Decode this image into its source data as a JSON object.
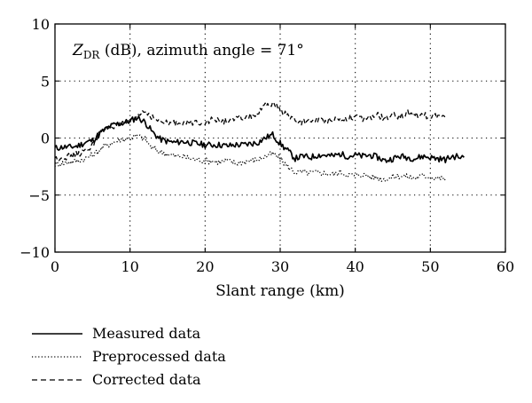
{
  "chart_data": {
    "type": "line",
    "annotation": {
      "symbol": "Z",
      "subscript": "DR",
      "text": " (dB), azimuth angle = 71°"
    },
    "xlabel": "Slant range (km)",
    "ylabel": "",
    "xlim": [
      0,
      60
    ],
    "ylim": [
      -10,
      10
    ],
    "x_ticks": [
      0,
      10,
      20,
      30,
      40,
      50,
      60
    ],
    "y_ticks": [
      -10,
      -5,
      0,
      5,
      10
    ],
    "grid": "dotted",
    "legend_position": "bottom-left",
    "series": [
      {
        "name": "Measured data",
        "style": "solid",
        "x": [
          0,
          1,
          2,
          3,
          4,
          5,
          6,
          7,
          8,
          9,
          10,
          11,
          12,
          13,
          14,
          15,
          16,
          17,
          18,
          19,
          20,
          21,
          22,
          23,
          24,
          25,
          26,
          27,
          28,
          29,
          30,
          31,
          32,
          33,
          34,
          35,
          36,
          37,
          38,
          39,
          40,
          41,
          42,
          43,
          44,
          45,
          46,
          47,
          48,
          49,
          50,
          51,
          52,
          53,
          54.5
        ],
        "y": [
          -0.9,
          -0.8,
          -0.8,
          -0.7,
          -0.4,
          -0.2,
          0.4,
          0.9,
          1.2,
          1.3,
          1.5,
          1.8,
          1.4,
          0.5,
          -0.1,
          -0.3,
          -0.4,
          -0.3,
          -0.4,
          -0.5,
          -0.6,
          -0.6,
          -0.6,
          -0.7,
          -0.6,
          -0.6,
          -0.5,
          -0.4,
          0.0,
          0.3,
          -0.5,
          -1.1,
          -1.8,
          -1.6,
          -1.7,
          -1.5,
          -1.5,
          -1.6,
          -1.4,
          -1.6,
          -1.5,
          -1.6,
          -1.5,
          -1.7,
          -2.0,
          -1.8,
          -1.6,
          -1.7,
          -1.8,
          -1.6,
          -1.7,
          -1.8,
          -1.9,
          -1.6,
          -1.7
        ]
      },
      {
        "name": "Preprocessed data",
        "style": "dotted",
        "x": [
          0,
          1,
          2,
          3,
          4,
          5,
          6,
          7,
          8,
          9,
          10,
          11,
          12,
          13,
          14,
          15,
          16,
          17,
          18,
          19,
          20,
          21,
          22,
          23,
          24,
          25,
          26,
          27,
          28,
          29,
          30,
          31,
          32,
          33,
          34,
          35,
          36,
          37,
          38,
          39,
          40,
          41,
          42,
          43,
          44,
          45,
          46,
          47,
          48,
          49,
          50,
          51,
          52
        ],
        "y": [
          -2.3,
          -2.2,
          -2.1,
          -2.0,
          -1.8,
          -1.5,
          -1.0,
          -0.6,
          -0.3,
          -0.1,
          0.0,
          0.2,
          -0.1,
          -0.9,
          -1.2,
          -1.4,
          -1.6,
          -1.6,
          -1.8,
          -1.9,
          -2.0,
          -2.0,
          -2.1,
          -2.0,
          -2.2,
          -2.1,
          -2.0,
          -1.9,
          -1.6,
          -1.4,
          -1.8,
          -2.5,
          -3.0,
          -3.0,
          -3.1,
          -3.0,
          -3.1,
          -3.2,
          -3.0,
          -3.2,
          -3.3,
          -3.2,
          -3.4,
          -3.5,
          -3.6,
          -3.4,
          -3.3,
          -3.4,
          -3.5,
          -3.3,
          -3.4,
          -3.5,
          -3.6
        ]
      },
      {
        "name": "Corrected data",
        "style": "dashed",
        "x": [
          0,
          1,
          2,
          3,
          4,
          5,
          6,
          7,
          8,
          9,
          10,
          11,
          12,
          13,
          14,
          15,
          16,
          17,
          18,
          19,
          20,
          21,
          22,
          23,
          24,
          25,
          26,
          27,
          28,
          29,
          30,
          31,
          32,
          33,
          34,
          35,
          36,
          37,
          38,
          39,
          40,
          41,
          42,
          43,
          44,
          45,
          46,
          47,
          48,
          49,
          50,
          51,
          52
        ],
        "y": [
          -1.8,
          -1.7,
          -1.6,
          -1.4,
          -1.2,
          -0.6,
          0.5,
          0.9,
          1.1,
          1.2,
          1.3,
          2.0,
          2.4,
          1.8,
          1.4,
          1.3,
          1.3,
          1.4,
          1.3,
          1.4,
          1.4,
          1.6,
          1.5,
          1.5,
          1.6,
          1.8,
          1.9,
          2.1,
          2.8,
          3.0,
          2.5,
          2.0,
          1.5,
          1.4,
          1.5,
          1.6,
          1.5,
          1.7,
          1.6,
          1.8,
          1.9,
          1.6,
          1.8,
          2.0,
          1.7,
          2.0,
          1.9,
          2.2,
          2.1,
          2.0,
          1.9,
          2.0,
          1.8
        ]
      }
    ]
  }
}
